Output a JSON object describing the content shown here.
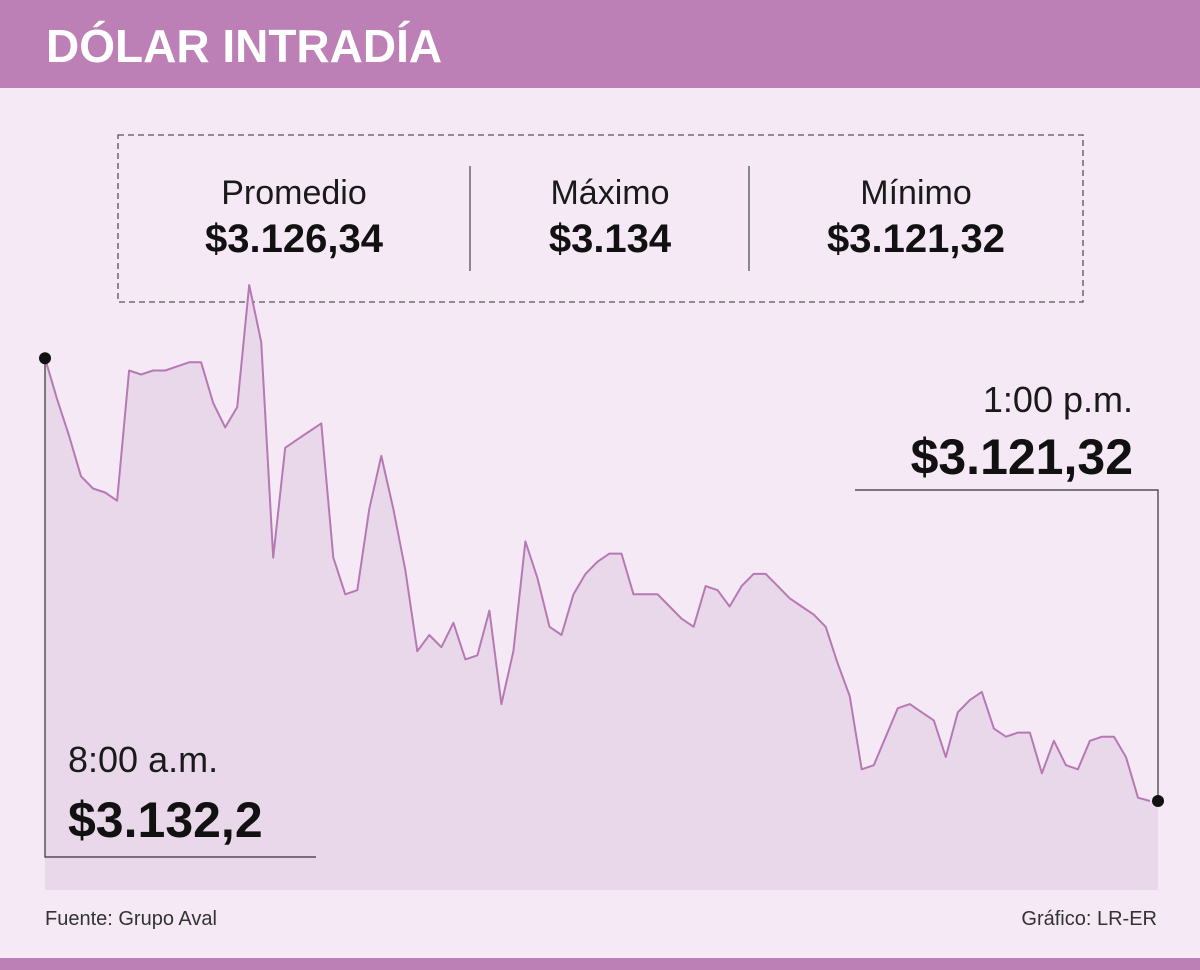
{
  "title": "DÓLAR INTRADÍA",
  "chart_data": {
    "type": "area",
    "color": "#b679b4",
    "fill": "#e8d8ea",
    "values": [
      3132.2,
      3131.2,
      3130.3,
      3129.3,
      3129.0,
      3128.9,
      3128.7,
      3131.9,
      3131.8,
      3131.9,
      3131.9,
      3132.0,
      3132.1,
      3132.1,
      3131.1,
      3130.5,
      3131.0,
      3134.0,
      3132.6,
      3127.3,
      3130.0,
      3130.2,
      3130.4,
      3130.6,
      3127.3,
      3126.4,
      3126.5,
      3128.5,
      3129.8,
      3128.5,
      3127.0,
      3125.0,
      3125.4,
      3125.1,
      3125.7,
      3124.8,
      3124.9,
      3126.0,
      3123.7,
      3125.0,
      3127.7,
      3126.8,
      3125.6,
      3125.4,
      3126.4,
      3126.9,
      3127.2,
      3127.4,
      3127.4,
      3126.4,
      3126.4,
      3126.4,
      3126.1,
      3125.8,
      3125.6,
      3126.6,
      3126.5,
      3126.1,
      3126.6,
      3126.9,
      3126.9,
      3126.6,
      3126.3,
      3126.1,
      3125.9,
      3125.6,
      3124.7,
      3123.9,
      3122.1,
      3122.2,
      3122.9,
      3123.6,
      3123.7,
      3123.5,
      3123.3,
      3122.4,
      3123.5,
      3123.8,
      3124.0,
      3123.1,
      3122.9,
      3123.0,
      3123.0,
      3122.0,
      3122.8,
      3122.2,
      3122.1,
      3122.8,
      3122.9,
      3122.9,
      3122.4,
      3121.4,
      3121.32
    ],
    "stats": [
      {
        "label": "Promedio",
        "value": "$3.126,34"
      },
      {
        "label": "Máximo",
        "value": "$3.134"
      },
      {
        "label": "Mínimo",
        "value": "$3.121,32"
      }
    ],
    "start": {
      "time": "8:00 a.m.",
      "value_label": "$3.132,2"
    },
    "end": {
      "time": "1:00 p.m.",
      "value_label": "$3.121,32"
    }
  },
  "source": "Fuente: Grupo Aval",
  "credit": "Gráfico: LR-ER"
}
